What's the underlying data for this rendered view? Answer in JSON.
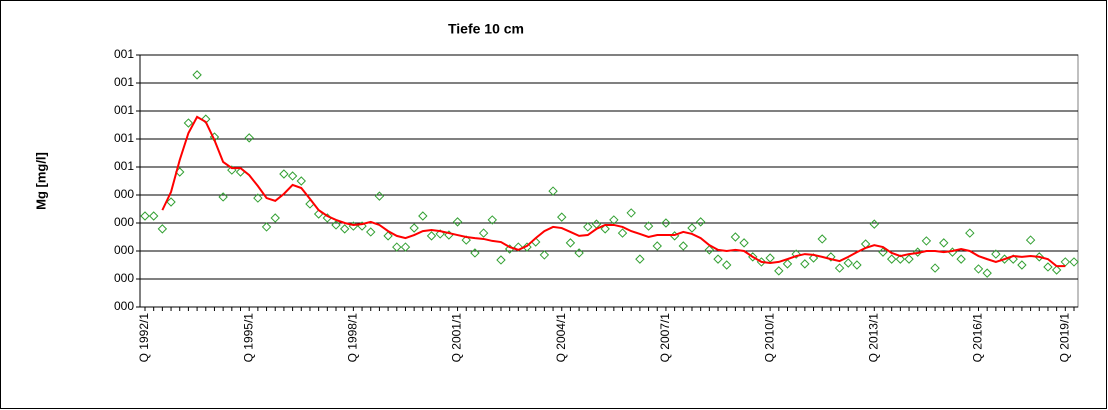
{
  "chart_data": {
    "type": "line",
    "title": "Tiefe  10 cm",
    "y_label": "Mg [mg/l]",
    "categories": [
      "Q 1992/1",
      null,
      null,
      null,
      null,
      null,
      null,
      null,
      null,
      null,
      null,
      null,
      "Q 1995/1",
      null,
      null,
      null,
      null,
      null,
      null,
      null,
      null,
      null,
      null,
      null,
      "Q 1998/1",
      null,
      null,
      null,
      null,
      null,
      null,
      null,
      null,
      null,
      null,
      null,
      "Q 2001/1",
      null,
      null,
      null,
      null,
      null,
      null,
      null,
      null,
      null,
      null,
      null,
      "Q 2004/1",
      null,
      null,
      null,
      null,
      null,
      null,
      null,
      null,
      null,
      null,
      null,
      "Q 2007/1",
      null,
      null,
      null,
      null,
      null,
      null,
      null,
      null,
      null,
      null,
      null,
      "Q 2010/1",
      null,
      null,
      null,
      null,
      null,
      null,
      null,
      null,
      null,
      null,
      null,
      "Q 2013/1",
      null,
      null,
      null,
      null,
      null,
      null,
      null,
      null,
      null,
      null,
      null,
      "Q 2016/1",
      null,
      null,
      null,
      null,
      null,
      null,
      null,
      null,
      null,
      "Q 2019/1",
      null
    ],
    "series": [
      {
        "color": "#33a033",
        "style": "markers",
        "values": [
          0.325,
          0.325,
          0.279,
          0.375,
          0.482,
          0.657,
          0.829,
          0.671,
          0.607,
          0.393,
          0.489,
          0.482,
          0.604,
          0.389,
          0.286,
          0.318,
          0.475,
          0.468,
          0.45,
          0.368,
          0.332,
          0.318,
          0.293,
          0.279,
          0.289,
          0.289,
          0.268,
          0.396,
          0.254,
          0.214,
          0.214,
          0.282,
          0.325,
          0.254,
          0.261,
          0.257,
          0.304,
          0.239,
          0.193,
          0.264,
          0.311,
          0.168,
          0.207,
          0.214,
          0.214,
          0.232,
          0.186,
          0.414,
          0.321,
          0.229,
          0.193,
          0.286,
          0.296,
          0.279,
          0.311,
          0.264,
          0.336,
          0.171,
          0.289,
          0.218,
          0.3,
          0.254,
          0.218,
          0.282,
          0.304,
          0.204,
          0.171,
          0.15,
          0.25,
          0.229,
          0.179,
          0.161,
          0.175,
          0.129,
          0.154,
          0.189,
          0.154,
          0.175,
          0.243,
          0.179,
          0.139,
          0.157,
          0.15,
          0.225,
          0.296,
          0.196,
          0.171,
          0.171,
          0.171,
          0.196,
          0.236,
          0.139,
          0.229,
          0.196,
          0.171,
          0.264,
          0.136,
          0.121,
          0.189,
          0.171,
          0.171,
          0.15,
          0.239,
          0.179,
          0.143,
          0.132,
          0.161,
          0.161
        ]
      },
      {
        "color": "#ff0000",
        "style": "line",
        "values": [
          null,
          null,
          0.346,
          0.411,
          0.525,
          0.621,
          0.679,
          0.661,
          0.596,
          0.518,
          0.496,
          0.496,
          0.471,
          0.432,
          0.389,
          0.379,
          0.404,
          0.436,
          0.425,
          0.386,
          0.346,
          0.325,
          0.311,
          0.3,
          0.293,
          0.296,
          0.304,
          0.293,
          0.271,
          0.254,
          0.246,
          0.257,
          0.271,
          0.275,
          0.271,
          0.264,
          0.257,
          0.25,
          0.246,
          0.243,
          0.236,
          0.232,
          0.214,
          0.204,
          0.218,
          0.246,
          0.271,
          0.286,
          0.282,
          0.268,
          0.254,
          0.257,
          0.279,
          0.293,
          0.293,
          0.286,
          0.271,
          0.261,
          0.25,
          0.257,
          0.257,
          0.257,
          0.268,
          0.261,
          0.246,
          0.221,
          0.204,
          0.2,
          0.204,
          0.2,
          0.179,
          0.161,
          0.157,
          0.161,
          0.171,
          0.182,
          0.189,
          0.186,
          0.179,
          0.171,
          0.164,
          0.179,
          0.196,
          0.211,
          0.221,
          0.214,
          0.193,
          0.182,
          0.189,
          0.193,
          0.2,
          0.2,
          0.196,
          0.2,
          0.207,
          0.2,
          0.182,
          0.171,
          0.161,
          0.171,
          0.182,
          0.179,
          0.182,
          0.179,
          0.171,
          0.146,
          0.146,
          null
        ]
      }
    ],
    "ylim": [
      0,
      0.9
    ],
    "yticks": [
      {
        "value": 0,
        "label": "000"
      },
      {
        "value": 0.1,
        "label": "000"
      },
      {
        "value": 0.2,
        "label": "000"
      },
      {
        "value": 0.3,
        "label": "000"
      },
      {
        "value": 0.4,
        "label": "000"
      },
      {
        "value": 0.5,
        "label": "001"
      },
      {
        "value": 0.6,
        "label": "001"
      },
      {
        "value": 0.7,
        "label": "001"
      },
      {
        "value": 0.8,
        "label": "001"
      },
      {
        "value": 0.9,
        "label": "001"
      }
    ],
    "grid": true
  }
}
